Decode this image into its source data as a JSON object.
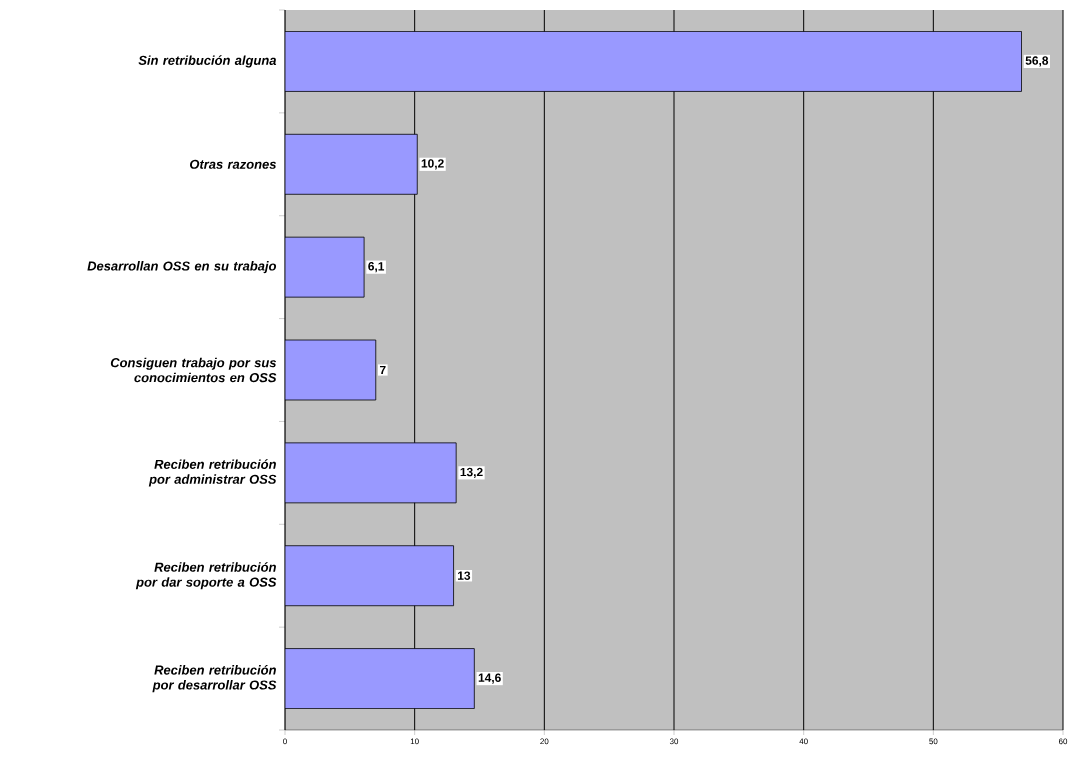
{
  "chart_data": {
    "type": "bar",
    "orientation": "horizontal",
    "categories": [
      "Sin retribución alguna",
      "Otras razones",
      "Desarrollan OSS en su trabajo",
      "Consiguen trabajo por sus conocimientos en OSS",
      "Reciben retribución por administrar OSS",
      "Reciben retribución por dar soporte a OSS",
      "Reciben retribución por desarrollar OSS"
    ],
    "values": [
      56.8,
      10.2,
      6.1,
      7,
      13.2,
      13,
      14.6
    ],
    "value_labels": [
      "56,8",
      "10,2",
      "6,1",
      "7",
      "13,2",
      "13",
      "14,6"
    ],
    "color": "#9999ff",
    "xlim": [
      0,
      60
    ],
    "xticks": [
      0,
      10,
      20,
      30,
      40,
      50,
      60
    ],
    "grid": "x"
  }
}
